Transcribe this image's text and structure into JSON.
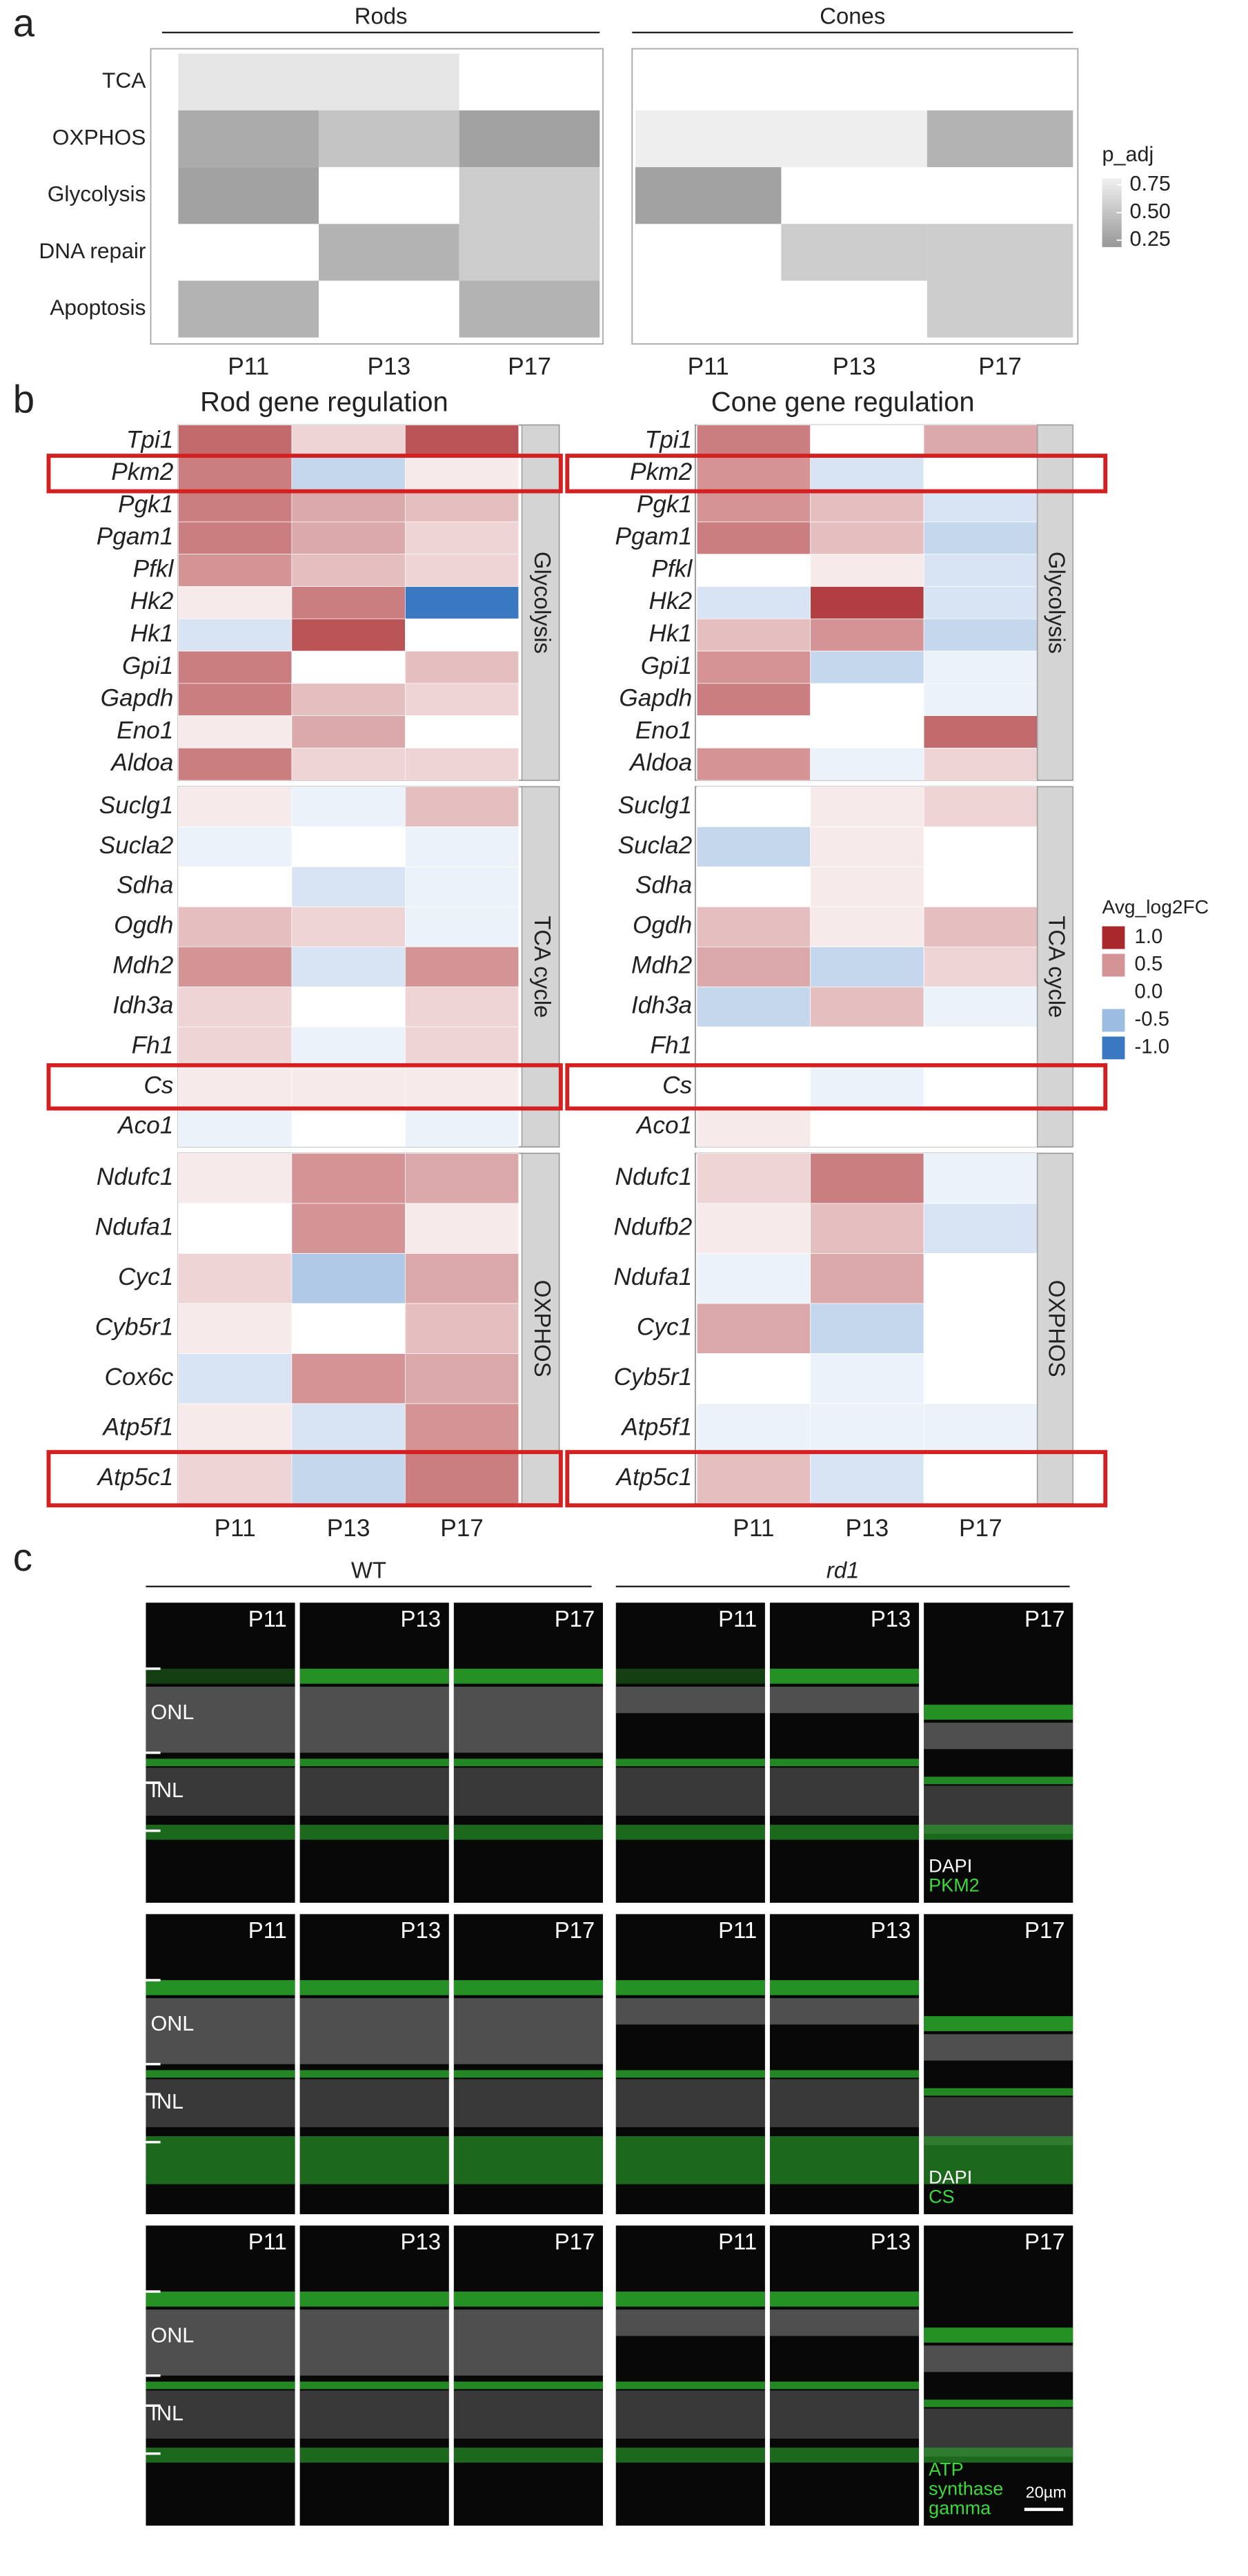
{
  "panel_labels": [
    "a",
    "b",
    "c"
  ],
  "chart_data": [
    {
      "type": "heatmap",
      "title": "Rods",
      "x": [
        "P11",
        "P13",
        "P17"
      ],
      "y": [
        "TCA",
        "OXPHOS",
        "Glycolysis",
        "DNA repair",
        "Apoptosis"
      ],
      "values": [
        [
          0.7,
          0.7,
          null
        ],
        [
          0.35,
          0.5,
          0.3
        ],
        [
          0.3,
          null,
          0.55
        ],
        [
          null,
          0.4,
          0.55
        ],
        [
          0.4,
          null,
          0.4
        ]
      ],
      "clim": [
        0.25,
        0.75
      ],
      "colors": [
        "#9a9a9a",
        "#eeeeee"
      ]
    },
    {
      "type": "heatmap",
      "title": "Cones",
      "x": [
        "P11",
        "P13",
        "P17"
      ],
      "values": [
        [
          null,
          null,
          null
        ],
        [
          0.75,
          0.8,
          0.4
        ],
        [
          0.3,
          null,
          null
        ],
        [
          null,
          0.55,
          0.55
        ],
        [
          null,
          null,
          0.55
        ]
      ],
      "clim": [
        0.25,
        0.75
      ],
      "colors": [
        "#9a9a9a",
        "#eeeeee"
      ],
      "colorbar": {
        "label": "p_adj",
        "ticks": [
          0.75,
          {
            "value": 0.5,
            "label": "0.50"
          },
          0.25
        ]
      }
    },
    {
      "type": "grouped-heatmap",
      "title": "Rod gene regulation",
      "x": [
        "P11",
        "P13",
        "P17"
      ],
      "clim": [
        -1,
        1
      ],
      "colors": [
        "#3a78c2",
        "#ffffff",
        "#a8282c"
      ],
      "groups": [
        {
          "name": "Glycolysis",
          "genes": [
            "Tpi1",
            "Pkm2",
            "Pgk1",
            "Pgam1",
            "Pfkl",
            "Hk2",
            "Hk1",
            "Gpi1",
            "Gapdh",
            "Eno1",
            "Aldoa"
          ],
          "values": [
            [
              0.7,
              0.2,
              0.8
            ],
            [
              0.6,
              -0.3,
              0.1
            ],
            [
              0.6,
              0.4,
              0.3
            ],
            [
              0.6,
              0.4,
              0.2
            ],
            [
              0.5,
              0.3,
              0.2
            ],
            [
              0.1,
              0.6,
              -1.0
            ],
            [
              -0.2,
              0.8,
              0.0
            ],
            [
              0.6,
              0.0,
              0.3
            ],
            [
              0.6,
              0.3,
              0.2
            ],
            [
              0.1,
              0.4,
              0.0
            ],
            [
              0.6,
              0.2,
              0.2
            ]
          ]
        },
        {
          "name": "TCA cycle",
          "genes": [
            "Suclg1",
            "Sucla2",
            "Sdha",
            "Ogdh",
            "Mdh2",
            "Idh3a",
            "Fh1",
            "Cs",
            "Aco1"
          ],
          "values": [
            [
              0.1,
              -0.1,
              0.3
            ],
            [
              -0.1,
              0.0,
              -0.1
            ],
            [
              0.0,
              -0.2,
              -0.1
            ],
            [
              0.3,
              0.2,
              -0.1
            ],
            [
              0.5,
              -0.2,
              0.5
            ],
            [
              0.2,
              0.0,
              0.2
            ],
            [
              0.2,
              -0.1,
              0.2
            ],
            [
              0.1,
              0.1,
              0.1
            ],
            [
              -0.1,
              0.0,
              -0.1
            ]
          ]
        },
        {
          "name": "OXPHOS",
          "genes": [
            "Ndufc1",
            "Ndufa1",
            "Cyc1",
            "Cyb5r1",
            "Cox6c",
            "Atp5f1",
            "Atp5c1"
          ],
          "values": [
            [
              0.1,
              0.5,
              0.4
            ],
            [
              0.0,
              0.5,
              0.1
            ],
            [
              0.2,
              -0.4,
              0.4
            ],
            [
              0.1,
              0.0,
              0.3
            ],
            [
              -0.2,
              0.5,
              0.4
            ],
            [
              0.1,
              -0.2,
              0.5
            ],
            [
              0.2,
              -0.3,
              0.6
            ]
          ]
        }
      ]
    },
    {
      "type": "grouped-heatmap",
      "title": "Cone gene regulation",
      "x": [
        "P11",
        "P13",
        "P17"
      ],
      "clim": [
        -1,
        1
      ],
      "colors": [
        "#3a78c2",
        "#ffffff",
        "#a8282c"
      ],
      "colorbar": {
        "label": "Avg_log2FC",
        "ticks": [
          {
            "value": 1,
            "label": "1.0"
          },
          0.5,
          {
            "value": 0,
            "label": "0.0"
          },
          -0.5,
          {
            "value": -1,
            "label": "-1.0"
          }
        ]
      },
      "groups": [
        {
          "name": "Glycolysis",
          "genes": [
            "Tpi1",
            "Pkm2",
            "Pgk1",
            "Pgam1",
            "Pfkl",
            "Hk2",
            "Hk1",
            "Gpi1",
            "Gapdh",
            "Eno1",
            "Aldoa"
          ],
          "values": [
            [
              0.6,
              0.0,
              0.4
            ],
            [
              0.5,
              -0.2,
              0.0
            ],
            [
              0.5,
              0.3,
              -0.2
            ],
            [
              0.6,
              0.3,
              -0.3
            ],
            [
              0.0,
              0.1,
              -0.2
            ],
            [
              -0.2,
              0.9,
              -0.2
            ],
            [
              0.3,
              0.5,
              -0.3
            ],
            [
              0.5,
              -0.3,
              -0.1
            ],
            [
              0.6,
              0.0,
              -0.1
            ],
            [
              0.0,
              0.0,
              0.7
            ],
            [
              0.5,
              -0.1,
              0.2
            ]
          ]
        },
        {
          "name": "TCA cycle",
          "genes": [
            "Suclg1",
            "Sucla2",
            "Sdha",
            "Ogdh",
            "Mdh2",
            "Idh3a",
            "Fh1",
            "Cs",
            "Aco1"
          ],
          "values": [
            [
              0.0,
              0.1,
              0.2
            ],
            [
              -0.3,
              0.1,
              0.0
            ],
            [
              0.0,
              0.1,
              0.0
            ],
            [
              0.3,
              0.1,
              0.3
            ],
            [
              0.4,
              -0.3,
              0.2
            ],
            [
              -0.3,
              0.3,
              -0.1
            ],
            [
              0.0,
              0.0,
              0.0
            ],
            [
              0.0,
              -0.1,
              0.0
            ],
            [
              0.1,
              0.0,
              0.0
            ]
          ]
        },
        {
          "name": "OXPHOS",
          "genes": [
            "Ndufc1",
            "Ndufb2",
            "Ndufa1",
            "Cyc1",
            "Cyb5r1",
            "Atp5f1",
            "Atp5c1"
          ],
          "values": [
            [
              0.2,
              0.6,
              -0.1
            ],
            [
              0.1,
              0.3,
              -0.2
            ],
            [
              -0.1,
              0.4,
              0.0
            ],
            [
              0.4,
              -0.3,
              0.0
            ],
            [
              0.0,
              -0.1,
              0.0
            ],
            [
              -0.1,
              -0.1,
              -0.1
            ],
            [
              0.3,
              -0.2,
              0.0
            ]
          ]
        }
      ]
    }
  ],
  "panel_c": {
    "groups": [
      "WT",
      "rd1"
    ],
    "timepoints": [
      "P11",
      "P13",
      "P17"
    ],
    "layers": [
      "ONL",
      "INL"
    ],
    "rows": [
      {
        "stain": [
          "DAPI",
          "PKM2"
        ]
      },
      {
        "stain": [
          "DAPI",
          "CS"
        ]
      },
      {
        "stain": [
          "ATP",
          "synthase",
          "gamma"
        ]
      }
    ],
    "scale_bar": "20µm"
  }
}
